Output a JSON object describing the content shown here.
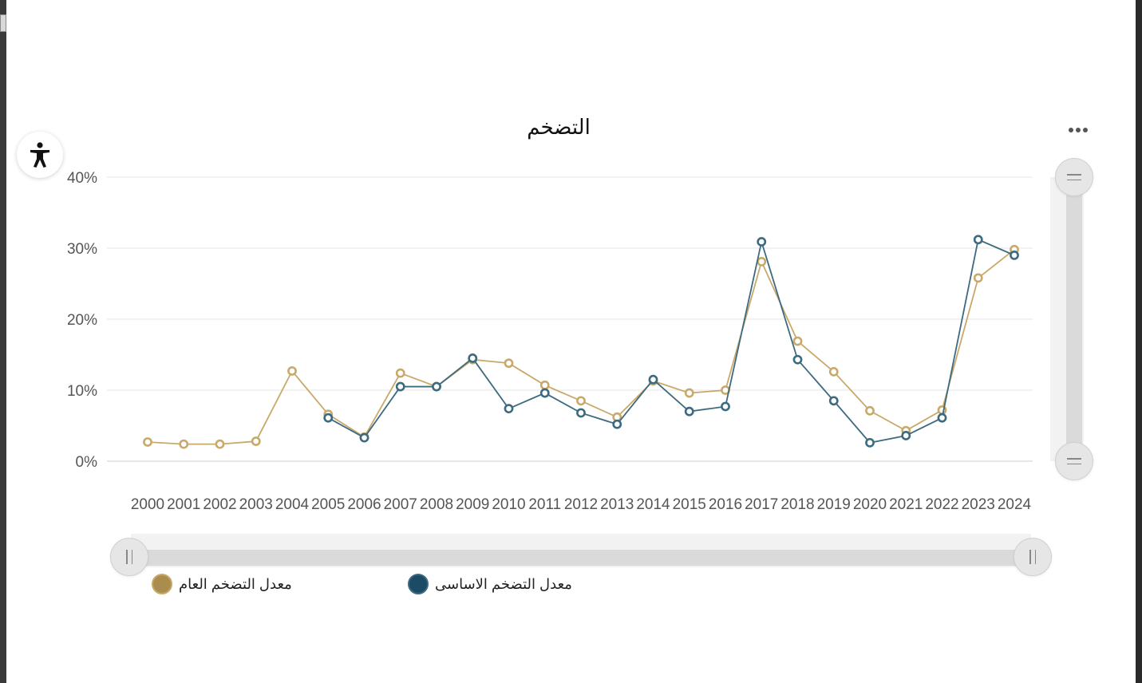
{
  "colors": {
    "general": "#c9a96a",
    "general_legend": "#a98c4e",
    "core": "#3c6a80",
    "core_legend": "#1d4a64",
    "grid": "#e6e6e6",
    "axis_text": "#555555"
  },
  "icons": {
    "accessibility": "accessibility-icon",
    "menu": "more-dots-icon",
    "handle": "drag-handle-icon"
  },
  "chart_data": {
    "type": "line",
    "title": "التضخم",
    "xlabel": "",
    "ylabel": "",
    "ylim": [
      0,
      40
    ],
    "yticks": [
      "0%",
      "10%",
      "20%",
      "30%",
      "40%"
    ],
    "categories": [
      "2000",
      "2001",
      "2002",
      "2003",
      "2004",
      "2005",
      "2006",
      "2007",
      "2008",
      "2009",
      "2010",
      "2011",
      "2012",
      "2013",
      "2014",
      "2015",
      "2016",
      "2017",
      "2018",
      "2019",
      "2020",
      "2021",
      "2022",
      "2023",
      "2024"
    ],
    "grid": true,
    "legend_position": "bottom",
    "series": [
      {
        "name": "معدل التضخم العام",
        "color_key": "general",
        "values": [
          2.7,
          2.4,
          2.4,
          2.8,
          12.7,
          6.6,
          3.4,
          12.4,
          10.5,
          14.3,
          13.8,
          10.7,
          8.5,
          6.2,
          11.3,
          9.6,
          10.0,
          28.1,
          16.9,
          12.6,
          7.1,
          4.3,
          7.2,
          25.8,
          29.8
        ]
      },
      {
        "name": "معدل التضخم الاساسى",
        "color_key": "core",
        "values": [
          null,
          null,
          null,
          null,
          null,
          6.1,
          3.3,
          10.5,
          10.5,
          14.5,
          7.4,
          9.6,
          6.8,
          5.2,
          11.5,
          7.0,
          7.7,
          30.9,
          14.3,
          8.5,
          2.6,
          3.6,
          6.1,
          31.2,
          29.0
        ]
      }
    ]
  }
}
